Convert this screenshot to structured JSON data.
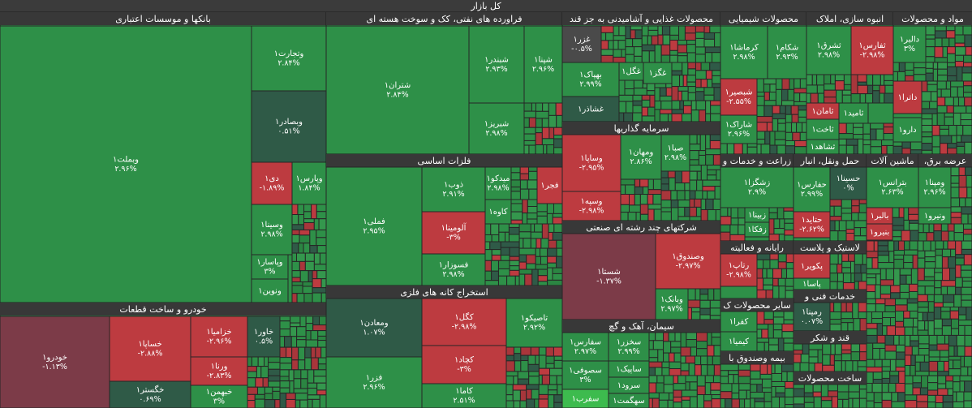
{
  "title": "کل بازار",
  "sectors": [
    {
      "name": "بانکها و موسسات اعتباری",
      "stocks": [
        {
          "name": "وبملت۱",
          "change": "۲.۹۶%",
          "color": "#2e9048"
        },
        {
          "name": "وتجارت۱",
          "change": "۲.۸۴%",
          "color": "#2e9048"
        },
        {
          "name": "وبصادر۱",
          "change": "۰.۵۱%",
          "color": "#2f5a47"
        },
        {
          "name": "دی۱",
          "change": "-۱.۸۹%",
          "color": "#bd3b40"
        },
        {
          "name": "وپارس۱",
          "change": "۱.۸۴%",
          "color": "#2e9048"
        },
        {
          "name": "وسینا۱",
          "change": "۲.۹۸%",
          "color": "#2e9048"
        },
        {
          "name": "وپاسار۱",
          "change": "۳%",
          "color": "#2e9048"
        },
        {
          "name": "ونوین۱",
          "color": "#2e9048"
        }
      ]
    },
    {
      "name": "خودرو و ساخت قطعات",
      "stocks": [
        {
          "name": "خودرو۱",
          "change": "-۱.۱۳%",
          "color": "#7c3b48"
        },
        {
          "name": "خساپا۱",
          "change": "-۲.۸۸%",
          "color": "#bd3b40"
        },
        {
          "name": "خگستر۱",
          "change": "۰.۶۹%",
          "color": "#2f5a47"
        },
        {
          "name": "خزامیا۱",
          "change": "-۲.۹۶%",
          "color": "#bd3b40"
        },
        {
          "name": "ورنا۱",
          "change": "-۲.۸۳%",
          "color": "#bd3b40"
        },
        {
          "name": "خبهمن۱",
          "change": "۳%",
          "color": "#2e9048"
        },
        {
          "name": "خاور۱",
          "change": "۰.۵%",
          "color": "#2f5a47"
        }
      ]
    },
    {
      "name": "فراورده های نفتی، کک و سوخت هسته ای",
      "stocks": [
        {
          "name": "شتران۱",
          "change": "۲.۸۴%",
          "color": "#2e9048"
        },
        {
          "name": "شبندر۱",
          "change": "۲.۹۳%",
          "color": "#2e9048"
        },
        {
          "name": "شپنا۱",
          "change": "۲.۹۶%",
          "color": "#2e9048"
        },
        {
          "name": "شبریز۱",
          "change": "۲.۹۸%",
          "color": "#2e9048"
        }
      ]
    },
    {
      "name": "فلزات اساسی",
      "stocks": [
        {
          "name": "فملی۱",
          "change": "۲.۹۵%",
          "color": "#2e9048"
        },
        {
          "name": "ذوب۱",
          "change": "۲.۹۱%",
          "color": "#2e9048"
        },
        {
          "name": "آلومینا۱",
          "change": "-۳%",
          "color": "#bd3b40"
        },
        {
          "name": "فسوزار۱",
          "change": "۲.۹۸%",
          "color": "#2e9048"
        },
        {
          "name": "میدکو۱",
          "change": "۲.۹۸%",
          "color": "#2e9048"
        },
        {
          "name": "فجر۱",
          "color": "#bd3b40"
        },
        {
          "name": "کاوه۱",
          "color": "#2e9048"
        }
      ]
    },
    {
      "name": "استخراج کانه های فلزی",
      "stocks": [
        {
          "name": "ومعادن۱",
          "change": "۱.۰۷%",
          "color": "#2f5a47"
        },
        {
          "name": "فزر۱",
          "change": "۲.۹۶%",
          "color": "#2e9048"
        },
        {
          "name": "کگل۱",
          "change": "-۲.۹۸%",
          "color": "#bd3b40"
        },
        {
          "name": "کچاد۱",
          "change": "-۳%",
          "color": "#bd3b40"
        },
        {
          "name": "کاما۱",
          "change": "۲.۵۱%",
          "color": "#2e9048"
        },
        {
          "name": "تاصیکو۱",
          "change": "۲.۹۲%",
          "color": "#2e9048"
        }
      ]
    },
    {
      "name": "محصولات غذایی و آشامیدنی به جز قند",
      "stocks": [
        {
          "name": "غزر۱",
          "change": "-۰.۵%",
          "color": "#4a4a4a"
        },
        {
          "name": "بهپاک۱",
          "change": "۲.۹۹%",
          "color": "#2e9048"
        },
        {
          "name": "غشاذر۱",
          "color": "#2f5a47"
        },
        {
          "name": "غگل۱",
          "color": "#2e9048"
        },
        {
          "name": "غگز۱",
          "color": "#2e9048"
        }
      ]
    },
    {
      "name": "سرمایه گذاریها",
      "stocks": [
        {
          "name": "وساپا۱",
          "change": "-۲.۹۵%",
          "color": "#bd3b40"
        },
        {
          "name": "وسپه۱",
          "change": "-۲.۹۸%",
          "color": "#bd3b40"
        },
        {
          "name": "ومهان۱",
          "change": "۲.۸۶%",
          "color": "#2e9048"
        },
        {
          "name": "صبا۱",
          "change": "۲.۹۸%",
          "color": "#2e9048"
        }
      ]
    },
    {
      "name": "شرکتهای چند رشته ای صنعتی",
      "stocks": [
        {
          "name": "شستا۱",
          "change": "-۱.۳۷%",
          "color": "#7c3b48"
        },
        {
          "name": "وصندوق۱",
          "change": "-۲.۹۷%",
          "color": "#bd3b40"
        },
        {
          "name": "وبانک۱",
          "change": "۲.۹۷%",
          "color": "#2e9048"
        }
      ]
    },
    {
      "name": "سیمان، آهک و گچ",
      "stocks": [
        {
          "name": "سفارس۱",
          "change": "۲.۹۷%",
          "color": "#2e9048"
        },
        {
          "name": "سخزر۱",
          "change": "۲.۹۹%",
          "color": "#2e9048"
        },
        {
          "name": "سصوفی۱",
          "change": "۳%",
          "color": "#2e9048"
        },
        {
          "name": "ساپیک۱",
          "color": "#2e9048"
        },
        {
          "name": "سرود۱",
          "color": "#2e9048"
        },
        {
          "name": "سهگمت۱",
          "color": "#2e9048"
        },
        {
          "name": "سفرب۱",
          "color": "#3dbb4e"
        }
      ]
    },
    {
      "name": "محصولات شیمیایی",
      "stocks": [
        {
          "name": "کرماشا۱",
          "change": "۲.۹۸%",
          "color": "#2e9048"
        },
        {
          "name": "شکام۱",
          "change": "۲.۹۳%",
          "color": "#2e9048"
        },
        {
          "name": "شبصیر۱",
          "change": "-۲.۵۵%",
          "color": "#bd3b40"
        },
        {
          "name": "شاراک۱",
          "change": "۲.۹۶%",
          "color": "#2e9048"
        }
      ]
    },
    {
      "name": "انبوه سازی، املاک",
      "stocks": [
        {
          "name": "ثشرق۱",
          "change": "۲.۹۸%",
          "color": "#2e9048"
        },
        {
          "name": "ثفارس۱",
          "change": "-۲.۹۸%",
          "color": "#bd3b40"
        },
        {
          "name": "ثامان۱",
          "color": "#bd3b40"
        },
        {
          "name": "ثاخت۱",
          "color": "#2e9048"
        },
        {
          "name": "ثشاهد۱",
          "color": "#2e9048"
        },
        {
          "name": "ثامید۱",
          "color": "#2e9048"
        }
      ]
    },
    {
      "name": "مواد و محصولات",
      "stocks": [
        {
          "name": "دالبر۱",
          "change": "۳%",
          "color": "#2e9048"
        },
        {
          "name": "داترا۱",
          "color": "#bd3b40"
        },
        {
          "name": "دارو۱",
          "color": "#2e9048"
        }
      ]
    },
    {
      "name": "زراعت و خدمات و",
      "stocks": [
        {
          "name": "زشگزا۱",
          "change": "۲.۹%",
          "color": "#2e9048"
        },
        {
          "name": "زبینا۱",
          "color": "#2e9048"
        },
        {
          "name": "زفکا۱",
          "color": "#2e9048"
        }
      ]
    },
    {
      "name": "حمل ونقل، انبار",
      "stocks": [
        {
          "name": "حفارس۱",
          "change": "۲.۹۹%",
          "color": "#2e9048"
        },
        {
          "name": "حسینا۱",
          "change": "۰%",
          "color": "#2f5a47"
        },
        {
          "name": "حتاید۱",
          "change": "-۲.۶۲%",
          "color": "#bd3b40"
        }
      ]
    },
    {
      "name": "ماشین آلات",
      "stocks": [
        {
          "name": "بترانس۱",
          "change": "۲.۶۳%",
          "color": "#2e9048"
        },
        {
          "name": "بالبر۱",
          "color": "#bd3b40"
        },
        {
          "name": "بنیرو۱",
          "color": "#bd3b40"
        }
      ]
    },
    {
      "name": "عرضه برق،",
      "stocks": [
        {
          "name": "ومپنا۱",
          "change": "۲.۹۶%",
          "color": "#2e9048"
        },
        {
          "name": "ونیرو۱",
          "color": "#2e9048"
        }
      ]
    },
    {
      "name": "رایانه و فعالیته",
      "stocks": [
        {
          "name": "رتاپ۱",
          "change": "-۲.۹۸%",
          "color": "#bd3b40"
        }
      ]
    },
    {
      "name": "لاستیک و پلاست",
      "stocks": [
        {
          "name": "پکویر۱",
          "color": "#bd3b40"
        },
        {
          "name": "پاسا۱",
          "color": "#2e9048"
        }
      ]
    },
    {
      "name": "خدمات فنی و",
      "stocks": [
        {
          "name": "رمپنا۱",
          "change": "۰.۰۷%",
          "color": "#2f5a47"
        }
      ]
    },
    {
      "name": "سایر محصولات ک",
      "stocks": [
        {
          "name": "کفرا۱",
          "color": "#2e9048"
        },
        {
          "name": "کیمیا۱",
          "color": "#2e9048"
        }
      ]
    },
    {
      "name": "قند و شکر",
      "stocks": []
    },
    {
      "name": "بیمه وصندوق با",
      "stocks": []
    },
    {
      "name": "ساخت محصولات",
      "stocks": []
    }
  ]
}
